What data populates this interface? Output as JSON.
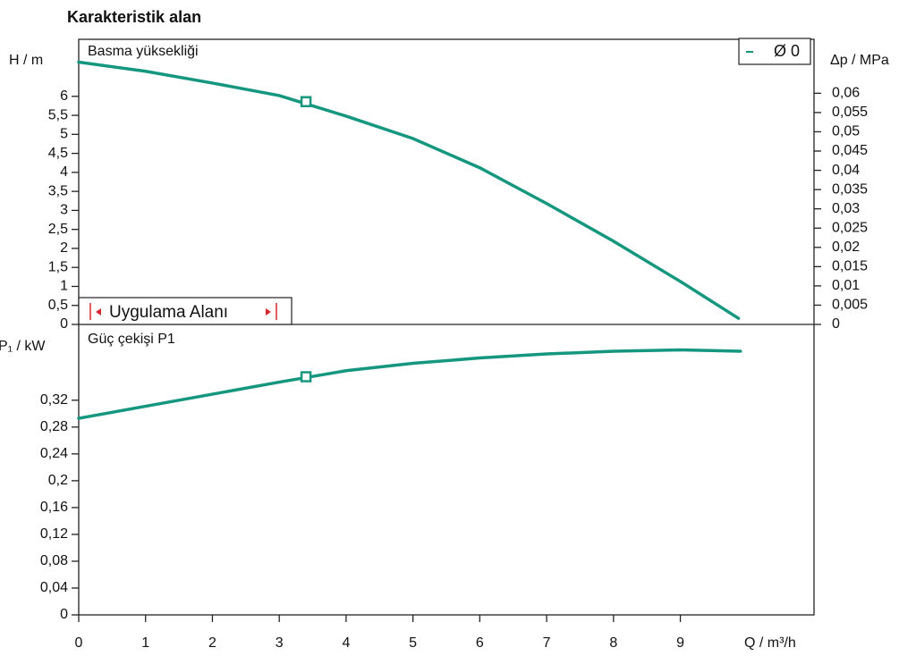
{
  "title": "Karakteristik alan",
  "chart_data": [
    {
      "type": "line",
      "panel_label": "Basma yüksekliği",
      "ylabel": "H / m",
      "y2label": "Δp / MPa",
      "annotation": "Uygulama Alanı",
      "annotation_color": "#d9262c",
      "x": [
        0,
        1,
        2,
        3,
        4,
        5,
        6,
        7,
        8,
        9,
        9.87
      ],
      "series": [
        {
          "name": "Ø 0",
          "color": "#15977f",
          "values": [
            6.9,
            6.66,
            6.35,
            6.02,
            5.48,
            4.89,
            4.12,
            3.18,
            2.19,
            1.13,
            0.16
          ]
        }
      ],
      "marker": {
        "x": 3.4,
        "y": 5.86
      },
      "xlim": [
        0,
        11
      ],
      "ylim": [
        0,
        7.5
      ],
      "yticks": [
        0,
        {
          "value": 0.5,
          "label": "0,5"
        },
        1,
        {
          "value": 1.5,
          "label": "1,5"
        },
        2,
        {
          "value": 2.5,
          "label": "2,5"
        },
        3,
        {
          "value": 3.5,
          "label": "3,5"
        },
        4,
        {
          "value": 4.5,
          "label": "4,5"
        },
        5,
        {
          "value": 5.5,
          "label": "5,5"
        },
        6
      ],
      "y2lim": [
        0,
        0.074
      ],
      "y2ticks": [
        0,
        {
          "value": 0.005,
          "label": "0,005"
        },
        {
          "value": 0.01,
          "label": "0,01"
        },
        {
          "value": 0.015,
          "label": "0,015"
        },
        {
          "value": 0.02,
          "label": "0,02"
        },
        {
          "value": 0.025,
          "label": "0,025"
        },
        {
          "value": 0.03,
          "label": "0,03"
        },
        {
          "value": 0.035,
          "label": "0,035"
        },
        {
          "value": 0.04,
          "label": "0,04"
        },
        {
          "value": 0.045,
          "label": "0,045"
        },
        {
          "value": 0.05,
          "label": "0,05"
        },
        {
          "value": 0.055,
          "label": "0,055"
        },
        {
          "value": 0.06,
          "label": "0,06"
        }
      ]
    },
    {
      "type": "line",
      "panel_label": "Güç çekişi P1",
      "ylabel": "P₁ / kW",
      "xlabel": "Q / m³/h",
      "x": [
        0,
        1,
        2,
        3,
        4,
        5,
        6,
        7,
        8,
        9,
        9.9
      ],
      "series": [
        {
          "name": "P1",
          "color": "#15977f",
          "values": [
            0.293,
            0.311,
            0.329,
            0.347,
            0.364,
            0.375,
            0.383,
            0.389,
            0.393,
            0.395,
            0.393
          ]
        }
      ],
      "marker": {
        "x": 3.4,
        "y": 0.355
      },
      "xlim": [
        0,
        11
      ],
      "ylim": [
        0,
        0.433
      ],
      "xticks": [
        0,
        1,
        2,
        3,
        4,
        5,
        6,
        7,
        8,
        9
      ],
      "yticks": [
        0,
        {
          "value": 0.04,
          "label": "0,04"
        },
        {
          "value": 0.08,
          "label": "0,08"
        },
        {
          "value": 0.12,
          "label": "0,12"
        },
        {
          "value": 0.16,
          "label": "0,16"
        },
        {
          "value": 0.2,
          "label": "0,2"
        },
        {
          "value": 0.24,
          "label": "0,24"
        },
        {
          "value": 0.28,
          "label": "0,28"
        },
        {
          "value": 0.32,
          "label": "0,32"
        }
      ]
    }
  ]
}
